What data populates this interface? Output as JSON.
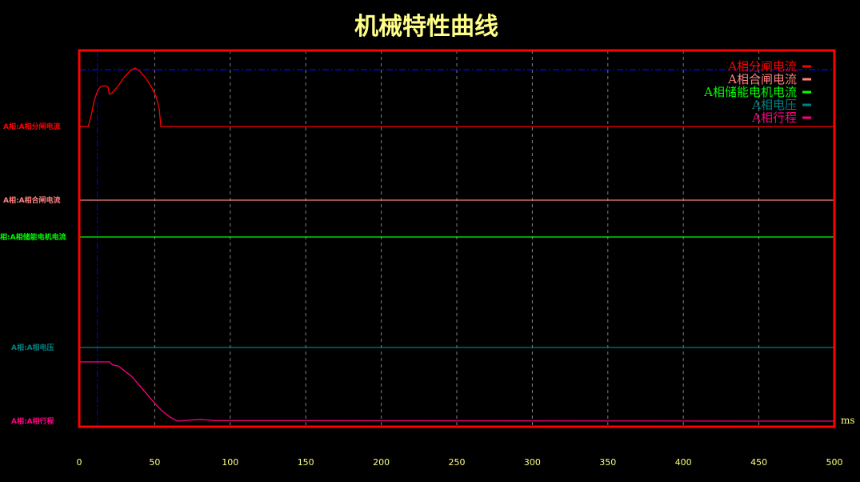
{
  "chart_data": {
    "type": "line",
    "title": "机械特性曲线",
    "x_unit": "ms",
    "xlim": [
      0,
      500
    ],
    "x_ticks": [
      "0",
      "50",
      "100",
      "150",
      "200",
      "250",
      "300",
      "350",
      "400",
      "450",
      "500"
    ],
    "grid": true,
    "legend_placement": "top-right",
    "value_note_scale": "relative",
    "series": [
      {
        "name": "A相分闸电流",
        "axis_label": "A相:A相分闸电流",
        "color": "#ff0000",
        "points": [
          [
            0,
            0
          ],
          [
            6,
            0
          ],
          [
            8,
            0.2
          ],
          [
            10,
            0.45
          ],
          [
            12,
            0.6
          ],
          [
            14,
            0.68
          ],
          [
            17,
            0.7
          ],
          [
            19,
            0.68
          ],
          [
            20,
            0.55
          ],
          [
            22,
            0.58
          ],
          [
            26,
            0.7
          ],
          [
            30,
            0.85
          ],
          [
            34,
            0.96
          ],
          [
            37,
            1.0
          ],
          [
            40,
            0.95
          ],
          [
            44,
            0.83
          ],
          [
            48,
            0.67
          ],
          [
            51,
            0.5
          ],
          [
            53,
            0.3
          ],
          [
            54,
            0
          ],
          [
            500,
            0
          ]
        ]
      },
      {
        "name": "A相合闸电流",
        "axis_label": "A相:A相合闸电流",
        "color": "#ff8080",
        "points": [
          [
            0,
            0
          ],
          [
            500,
            0
          ]
        ]
      },
      {
        "name": "A相储能电机电流",
        "axis_label": "相:A相储能电机电流",
        "color": "#00ff00",
        "points": [
          [
            0,
            0
          ],
          [
            500,
            0
          ]
        ]
      },
      {
        "name": "A相电压",
        "axis_label": "A相:A相电压",
        "color": "#008080",
        "points": [
          [
            0,
            0
          ],
          [
            500,
            0
          ]
        ]
      },
      {
        "name": "A相行程",
        "axis_label": "A相:A相行程",
        "color": "#ff0080",
        "points": [
          [
            0,
            1
          ],
          [
            20,
            1
          ],
          [
            22,
            0.95
          ],
          [
            26,
            0.93
          ],
          [
            30,
            0.85
          ],
          [
            35,
            0.75
          ],
          [
            40,
            0.6
          ],
          [
            45,
            0.45
          ],
          [
            50,
            0.3
          ],
          [
            55,
            0.17
          ],
          [
            60,
            0.07
          ],
          [
            65,
            0
          ],
          [
            80,
            0.03
          ],
          [
            90,
            0.01
          ],
          [
            500,
            0
          ]
        ]
      }
    ],
    "markers": {
      "vertical_cursor_ms": 12,
      "color": "#0000ff"
    },
    "colors": {
      "frame": "#ff0000",
      "grid": "#808080",
      "tick_labels": "#ffff80",
      "title": "#ffff88"
    }
  }
}
